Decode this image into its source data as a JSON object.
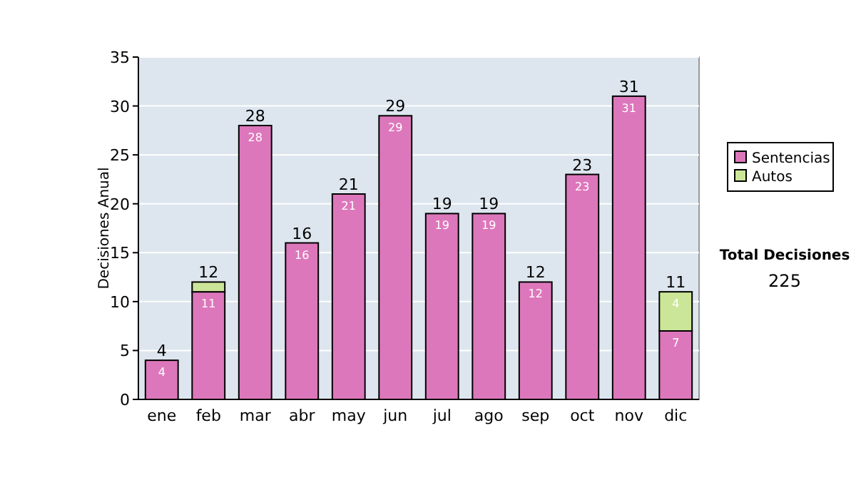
{
  "chart_data": {
    "type": "bar",
    "stacked": true,
    "ylabel": "Decisiones Anual",
    "categories": [
      "ene",
      "feb",
      "mar",
      "abr",
      "may",
      "jun",
      "jul",
      "ago",
      "sep",
      "oct",
      "nov",
      "dic"
    ],
    "series": [
      {
        "name": "Sentencias",
        "color": "#dd77bb",
        "values": [
          4,
          11,
          28,
          16,
          21,
          29,
          19,
          19,
          12,
          23,
          31,
          7
        ],
        "value_labels": [
          "4",
          "11",
          "28",
          "16",
          "21",
          "29",
          "19",
          "19",
          "12",
          "23",
          "31",
          "7"
        ]
      },
      {
        "name": "Autos",
        "color": "#cce699",
        "values": [
          0,
          1,
          0,
          0,
          0,
          0,
          0,
          0,
          0,
          0,
          0,
          4
        ],
        "value_labels": [
          null,
          null,
          null,
          null,
          null,
          null,
          null,
          null,
          null,
          null,
          null,
          "4"
        ]
      }
    ],
    "totals": [
      "4",
      "12",
      "28",
      "16",
      "21",
      "29",
      "19",
      "19",
      "12",
      "23",
      "31",
      "11"
    ],
    "ylim": [
      0,
      35
    ],
    "yticks": [
      0,
      5,
      10,
      15,
      20,
      25,
      30,
      35
    ],
    "grid": "y",
    "legend": "right",
    "annotations": [
      "Total Decisiones",
      "225"
    ]
  }
}
